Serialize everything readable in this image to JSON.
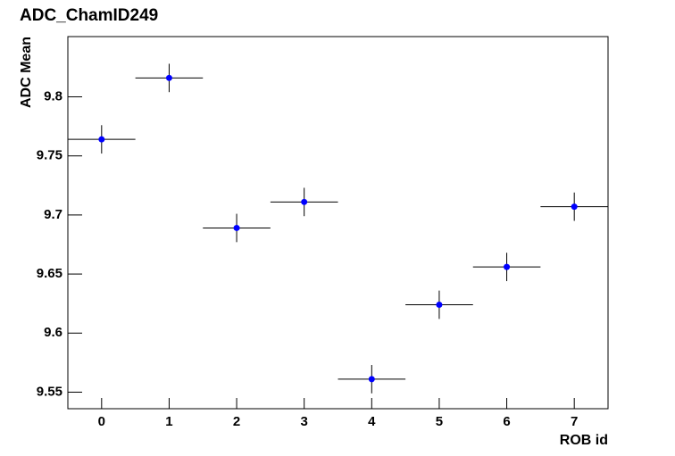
{
  "chart_data": {
    "type": "errorbar",
    "title": "ADC_ChamID249",
    "xlabel": "ROB id",
    "ylabel": "ADC Mean",
    "x": [
      0,
      1,
      2,
      3,
      4,
      5,
      6,
      7
    ],
    "series": [
      {
        "color": "#0000ff",
        "values": [
          9.764,
          9.816,
          9.689,
          9.711,
          9.561,
          9.624,
          9.656,
          9.707
        ],
        "yerr": [
          0.012,
          0.012,
          0.012,
          0.012,
          0.012,
          0.012,
          0.012,
          0.012
        ],
        "xerr": [
          0.5,
          0.5,
          0.5,
          0.5,
          0.5,
          0.5,
          0.5,
          0.5
        ]
      }
    ],
    "xlim": [
      -0.5,
      7.5
    ],
    "ylim": [
      9.536,
      9.851
    ],
    "xticks": [
      0,
      1,
      2,
      3,
      4,
      5,
      6,
      7
    ],
    "yticks": [
      9.55,
      9.6,
      9.65,
      9.7,
      9.75,
      9.8
    ]
  }
}
